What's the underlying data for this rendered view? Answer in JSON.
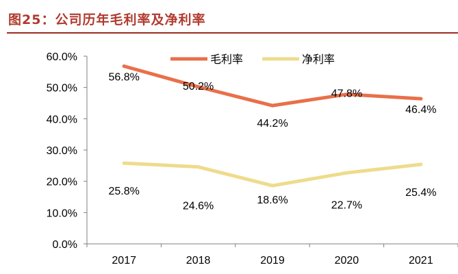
{
  "figure": {
    "title": "图25：公司历年毛利率及净利率"
  },
  "chart_data": {
    "type": "line",
    "categories": [
      "2017",
      "2018",
      "2019",
      "2020",
      "2021"
    ],
    "series": [
      {
        "name": "毛利率",
        "values": [
          56.8,
          50.2,
          44.2,
          47.8,
          46.4
        ],
        "labels": [
          "56.8%",
          "50.2%",
          "44.2%",
          "47.8%",
          "46.4%"
        ],
        "color": "#e8704a"
      },
      {
        "name": "净利率",
        "values": [
          25.8,
          24.6,
          18.6,
          22.7,
          25.4
        ],
        "labels": [
          "25.8%",
          "24.6%",
          "18.6%",
          "22.7%",
          "25.4%"
        ],
        "color": "#eedc8c"
      }
    ],
    "ylim": [
      0,
      60
    ],
    "y_ticks": [
      "0.0%",
      "10.0%",
      "20.0%",
      "30.0%",
      "40.0%",
      "50.0%",
      "60.0%"
    ],
    "legend": "top-center",
    "grid": false
  }
}
